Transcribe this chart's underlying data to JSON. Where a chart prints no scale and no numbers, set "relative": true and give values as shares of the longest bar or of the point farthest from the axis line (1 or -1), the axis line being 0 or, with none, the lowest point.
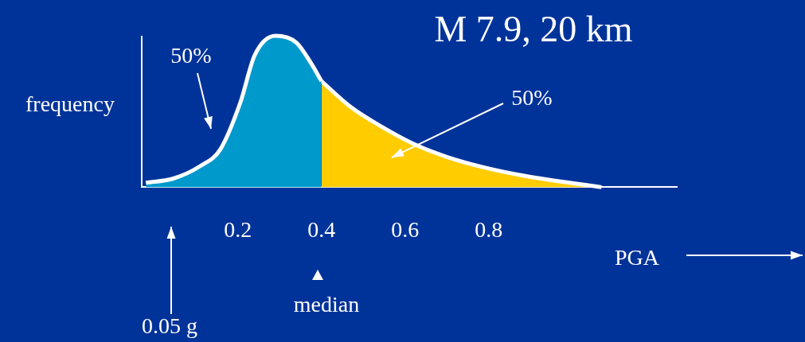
{
  "chart_data": {
    "type": "area",
    "title": "M 7.9, 20 km",
    "xlabel": "PGA",
    "ylabel": "frequency",
    "relative": true,
    "xlim": [
      -0.03,
      1.25
    ],
    "xticks": [
      0.2,
      0.4,
      0.6,
      0.8
    ],
    "grid": false,
    "legend": false,
    "series": [
      {
        "color": "#0099cc",
        "x": [
          -0.02,
          0.044,
          0.11,
          0.158,
          0.206,
          0.24,
          0.29,
          0.34,
          0.377,
          0.4
        ],
        "values": [
          0.03,
          0.056,
          0.14,
          0.25,
          0.56,
          0.87,
          1.0,
          0.955,
          0.81,
          0.7
        ]
      },
      {
        "color": "#ffcc00",
        "x": [
          0.4,
          0.47,
          0.55,
          0.625,
          0.7,
          0.79,
          0.89,
          1.07
        ],
        "values": [
          0.7,
          0.53,
          0.39,
          0.28,
          0.2,
          0.13,
          0.073,
          0
        ]
      }
    ],
    "annotations": [
      "50%",
      "50%",
      "median",
      "0.05 g"
    ]
  }
}
